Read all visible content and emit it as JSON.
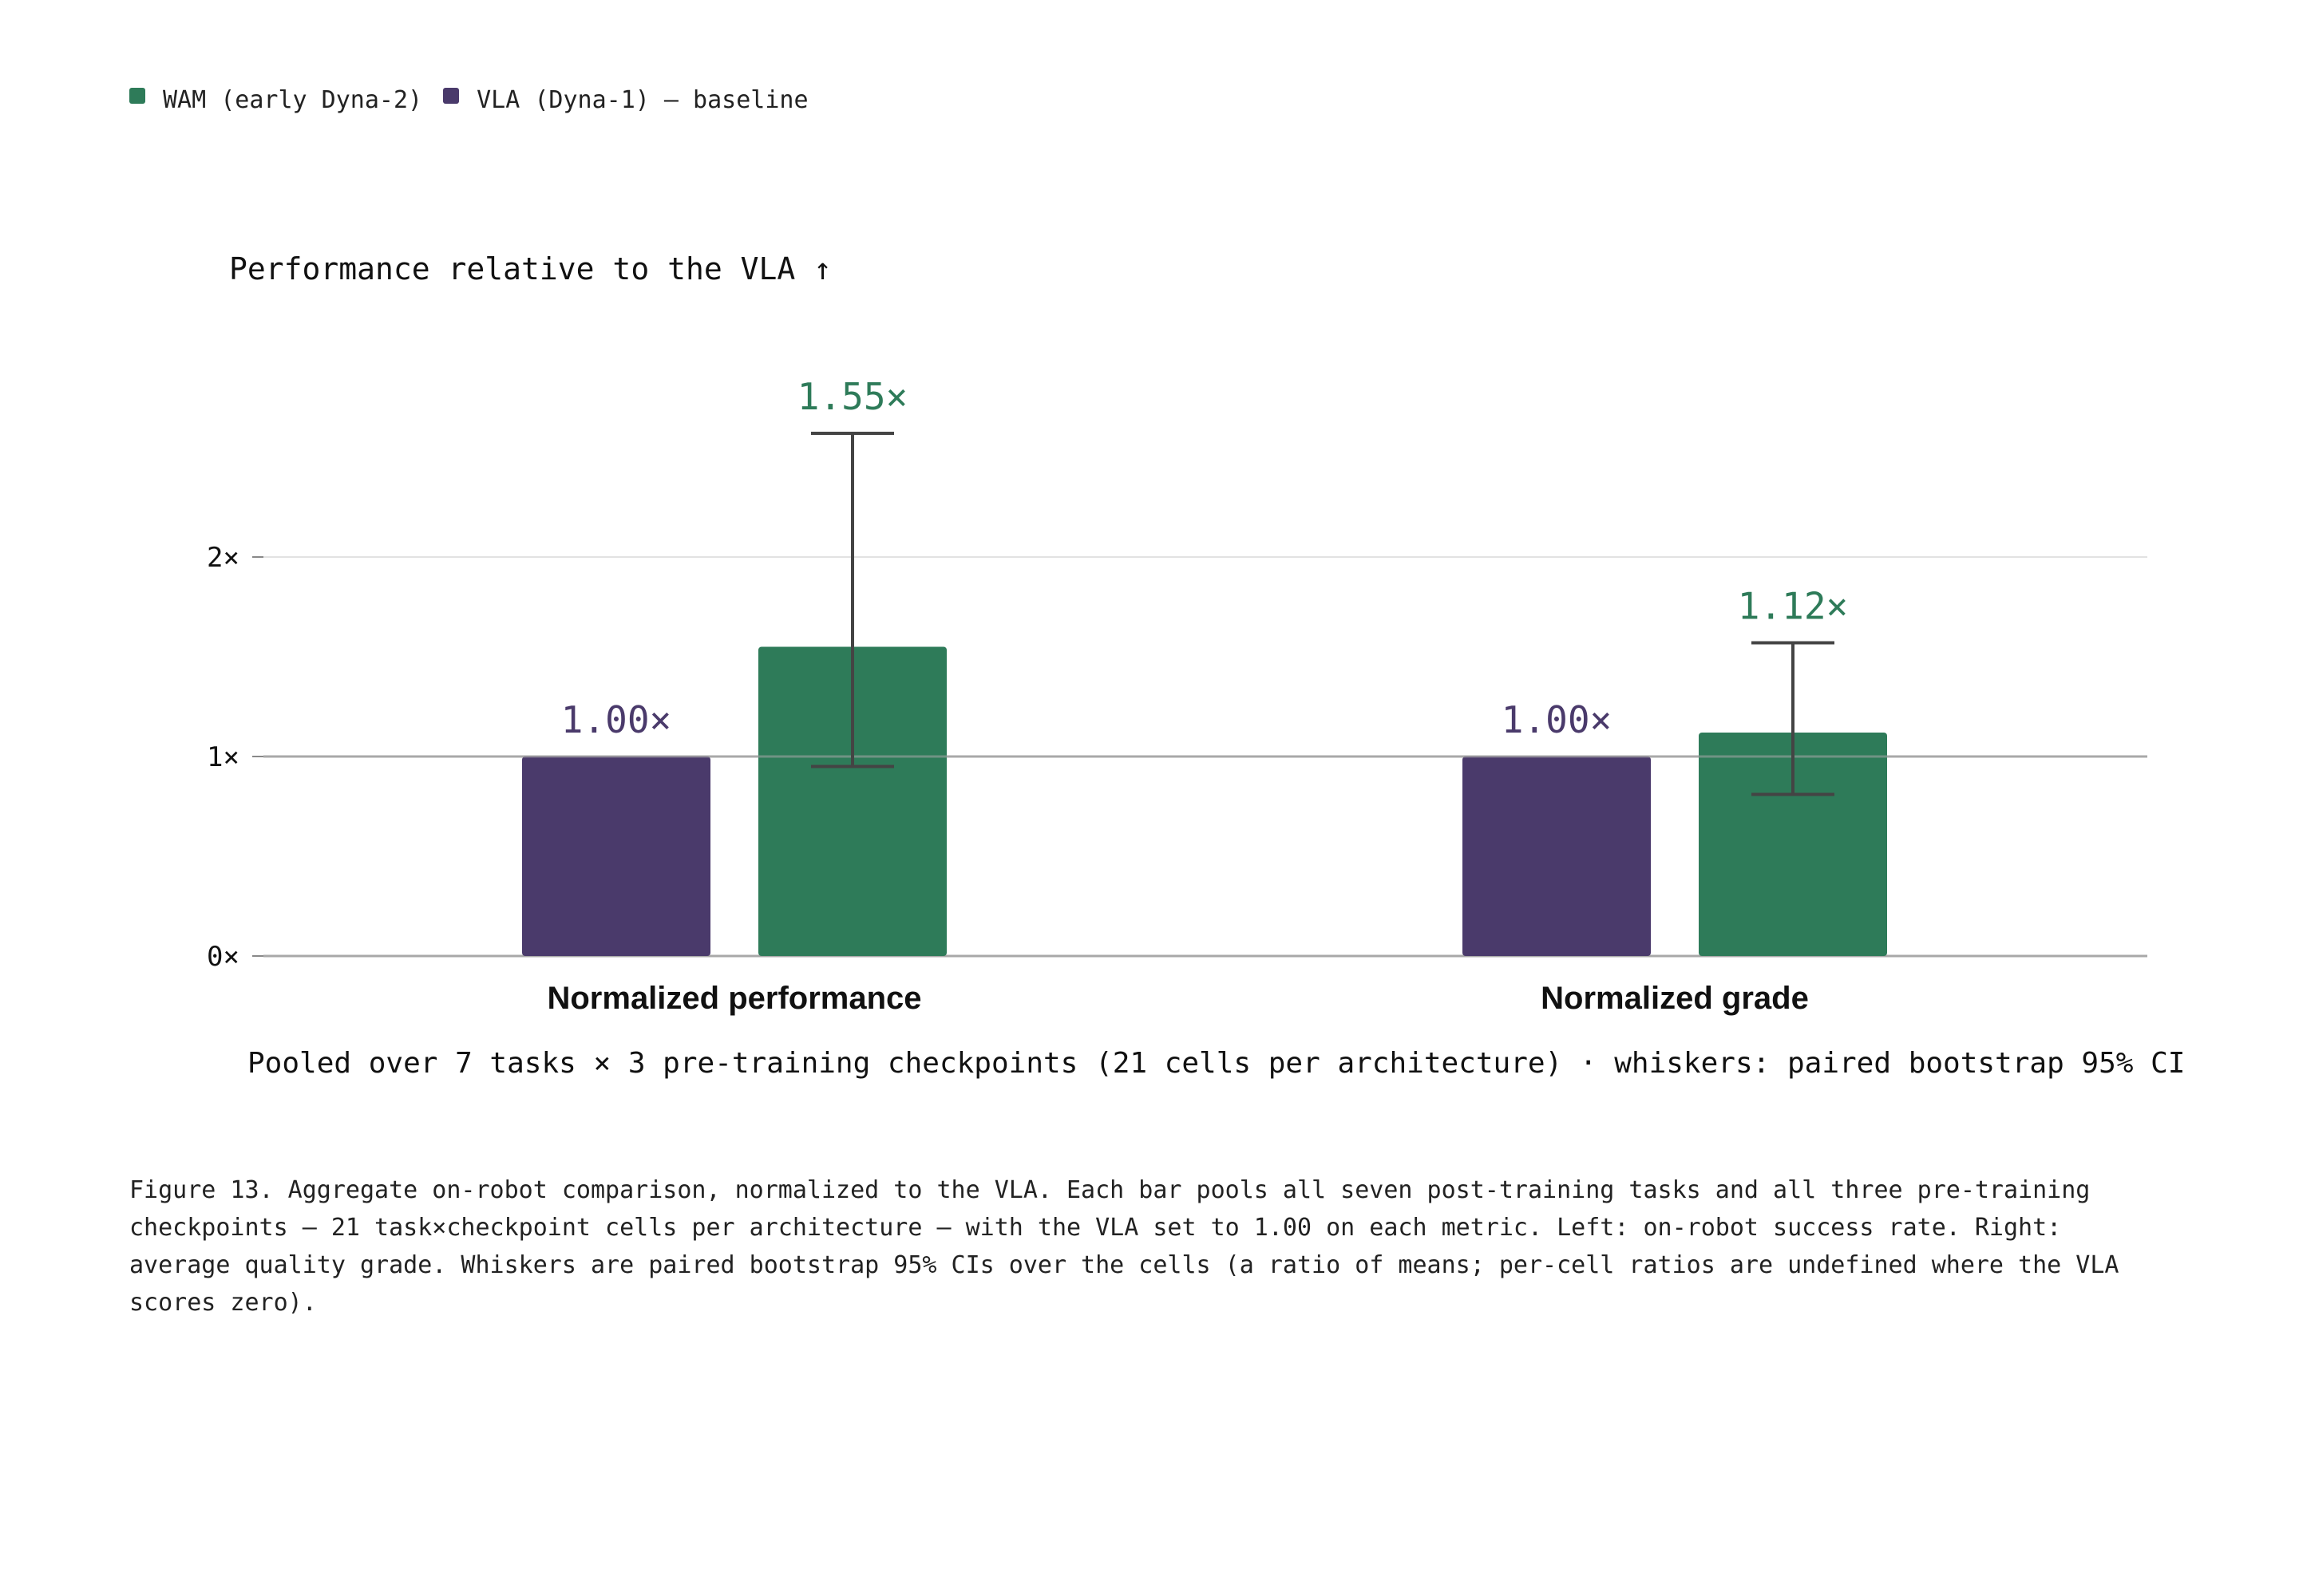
{
  "legend": {
    "items": [
      {
        "label": "WAM (early Dyna-2)",
        "color": "#2e7b59"
      },
      {
        "label": "VLA (Dyna-1) — baseline",
        "color": "#4a3a6b"
      }
    ]
  },
  "chart_data": {
    "type": "bar",
    "title": "Performance relative to the VLA ↑",
    "subtitle": "Pooled over 7 tasks × 3 pre-training checkpoints (21 cells per architecture) · whiskers: paired bootstrap 95% CI",
    "xlabel": "",
    "ylabel": "",
    "categories": [
      "Normalized performance",
      "Normalized grade"
    ],
    "series": [
      {
        "name": "VLA (Dyna-1) — baseline",
        "color": "#4a3a6b",
        "values": [
          1.0,
          1.0
        ],
        "labels": [
          "1.00×",
          "1.00×"
        ]
      },
      {
        "name": "WAM (early Dyna-2)",
        "color": "#2e7b59",
        "values": [
          1.55,
          1.12
        ],
        "labels": [
          "1.55×",
          "1.12×"
        ],
        "ci_low": [
          0.95,
          0.81
        ],
        "ci_high": [
          2.62,
          1.57
        ]
      }
    ],
    "yticks": [
      0,
      1,
      2
    ],
    "ytick_labels": [
      "0×",
      "1×",
      "2×"
    ],
    "ylim": [
      0,
      2.95
    ],
    "reference_line": 1,
    "grid": true,
    "legend_position": "top-left"
  },
  "caption": {
    "text": "Figure 13. Aggregate on-robot comparison, normalized to the VLA. Each bar pools all seven post-training tasks and all three pre-training checkpoints — 21 task×checkpoint cells per architecture — with the VLA set to 1.00 on each metric. Left: on-robot success rate. Right: average quality grade. Whiskers are paired bootstrap 95% CIs over the cells (a ratio of means; per-cell ratios are undefined where the VLA scores zero)."
  }
}
